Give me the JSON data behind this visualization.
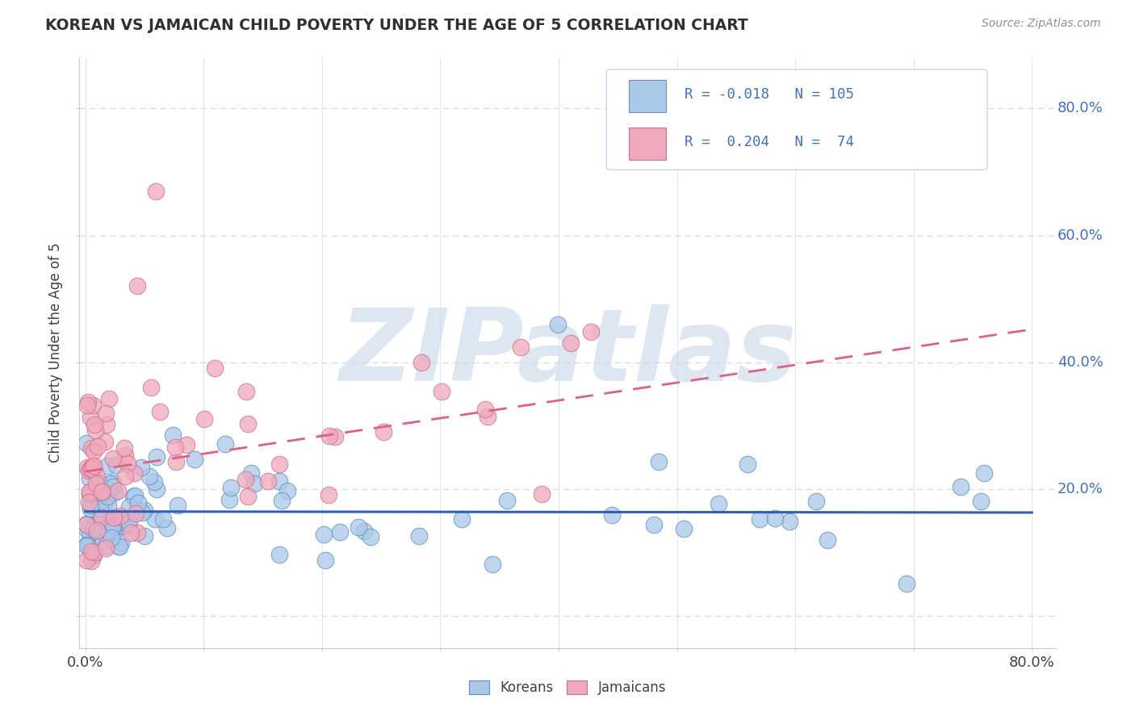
{
  "title": "KOREAN VS JAMAICAN CHILD POVERTY UNDER THE AGE OF 5 CORRELATION CHART",
  "source_text": "Source: ZipAtlas.com",
  "ylabel": "Child Poverty Under the Age of 5",
  "xlim": [
    -0.005,
    0.82
  ],
  "ylim": [
    -0.05,
    0.88
  ],
  "korean_R": -0.018,
  "korean_N": 105,
  "jamaican_R": 0.204,
  "jamaican_N": 74,
  "korean_color": "#aac8e8",
  "jamaican_color": "#f0a8bc",
  "korean_line_color": "#3060b0",
  "jamaican_line_color": "#e06080",
  "watermark": "ZIPatlas",
  "watermark_color": "#c8d8e8",
  "background_color": "#ffffff",
  "grid_color": "#d0dae8",
  "title_color": "#303030",
  "source_color": "#909090",
  "tick_label_color": "#4070c0",
  "korean_trend_intercept": 0.165,
  "korean_trend_slope": -0.002,
  "jamaican_trend_intercept": 0.228,
  "jamaican_trend_slope": 0.28
}
